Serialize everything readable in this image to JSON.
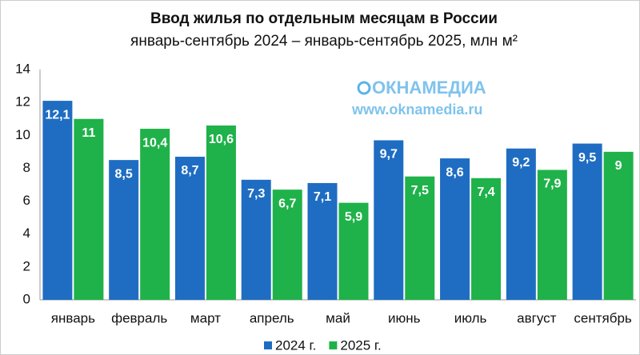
{
  "chart_data": {
    "type": "bar",
    "title": "Ввод жилья по отдельным месяцам в России",
    "subtitle": "январь-сентябрь 2024 – январь-сентябрь 2025, млн м²",
    "annotations": [
      "ОКНАМЕДИА",
      "www.oknamedia.ru"
    ],
    "categories": [
      "январь",
      "февраль",
      "март",
      "апрель",
      "май",
      "июнь",
      "июль",
      "август",
      "сентябрь"
    ],
    "series": [
      {
        "name": "2024 г.",
        "color": "#1f6dc2",
        "values": [
          12.1,
          8.5,
          8.7,
          7.3,
          7.1,
          9.7,
          8.6,
          9.2,
          9.5
        ],
        "value_labels": [
          "12,1",
          "8,5",
          "8,7",
          "7,3",
          "7,1",
          "9,7",
          "8,6",
          "9,2",
          "9,5"
        ]
      },
      {
        "name": "2025 г.",
        "color": "#1fb24a",
        "values": [
          11,
          10.4,
          10.6,
          6.7,
          5.9,
          7.5,
          7.4,
          7.9,
          9
        ],
        "value_labels": [
          "11",
          "10,4",
          "10,6",
          "6,7",
          "5,9",
          "7,5",
          "7,4",
          "7,9",
          "9"
        ]
      }
    ],
    "ylim": [
      0,
      14
    ],
    "yticks": [
      0,
      2,
      4,
      6,
      8,
      10,
      12,
      14
    ],
    "grid": false,
    "legend": "bottom"
  }
}
